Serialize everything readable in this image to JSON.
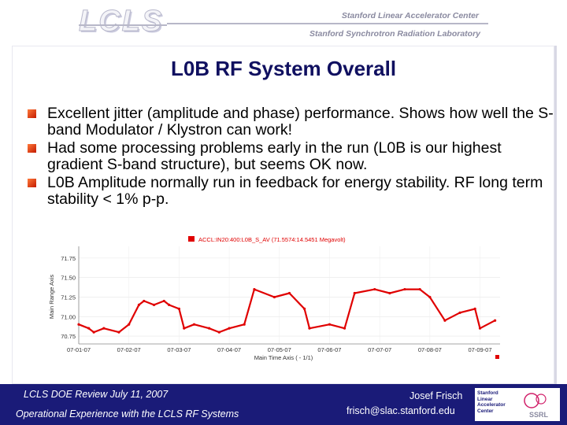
{
  "header": {
    "logo_text": "LCLS",
    "org_line1": "Stanford Linear Accelerator Center",
    "org_line2": "Stanford Synchrotron Radiation Laboratory"
  },
  "slide": {
    "title": "L0B RF System Overall",
    "bullets": [
      "Excellent jitter (amplitude and phase) performance. Shows how well the S-band Modulator / Klystron can work!",
      "Had some processing problems early in the run (L0B is our highest gradient S-band structure), but seems OK now.",
      "L0B Amplitude normally run in feedback for energy stability. RF long term stability < 1% p-p."
    ]
  },
  "chart_data": {
    "type": "line",
    "legend": "ACCL:IN20:400:L0B_S_AV (71.5574:14.5451 Megavolt)",
    "xlabel": "Main Time Axis (  -  1/1)",
    "ylabel": "Main Range Axis",
    "x_ticks": [
      "07-01-07",
      "07-02-07",
      "07-03-07",
      "07-04-07",
      "07-05-07",
      "07-06-07",
      "07-07-07",
      "07-08-07",
      "07-09-07"
    ],
    "y_ticks": [
      "71.75",
      "71.50",
      "71.25",
      "71.00",
      "70.75"
    ],
    "ylim": [
      70.65,
      71.9
    ],
    "xlim": [
      0,
      8.4
    ],
    "color": "#e00000",
    "series": [
      {
        "x": [
          0.0,
          0.2,
          0.3,
          0.5,
          0.8,
          1.0,
          1.2,
          1.3,
          1.5,
          1.7,
          1.8,
          2.0,
          2.1,
          2.3,
          2.6,
          2.8,
          3.0,
          3.3,
          3.5,
          3.9,
          4.2,
          4.5,
          4.6,
          5.0,
          5.3,
          5.5,
          5.9,
          6.2,
          6.5,
          6.8,
          7.0,
          7.3,
          7.6,
          7.9,
          8.0,
          8.3
        ],
        "y": [
          70.9,
          70.85,
          70.8,
          70.85,
          70.8,
          70.9,
          71.15,
          71.2,
          71.15,
          71.2,
          71.15,
          71.1,
          70.85,
          70.9,
          70.85,
          70.8,
          70.85,
          70.9,
          71.35,
          71.25,
          71.3,
          71.1,
          70.85,
          70.9,
          70.85,
          71.3,
          71.35,
          71.3,
          71.35,
          71.35,
          71.25,
          70.95,
          71.05,
          71.1,
          70.85,
          70.95
        ]
      }
    ]
  },
  "footer": {
    "left_line1": "LCLS DOE Review  July 11, 2007",
    "left_line2": "Operational Experience with the LCLS RF Systems",
    "author": "Josef Frisch",
    "email": "frisch@slac.stanford.edu",
    "badge_text": [
      "Stanford",
      "Linear",
      "Accelerator",
      "Center"
    ],
    "badge_logo": "SSRL"
  }
}
